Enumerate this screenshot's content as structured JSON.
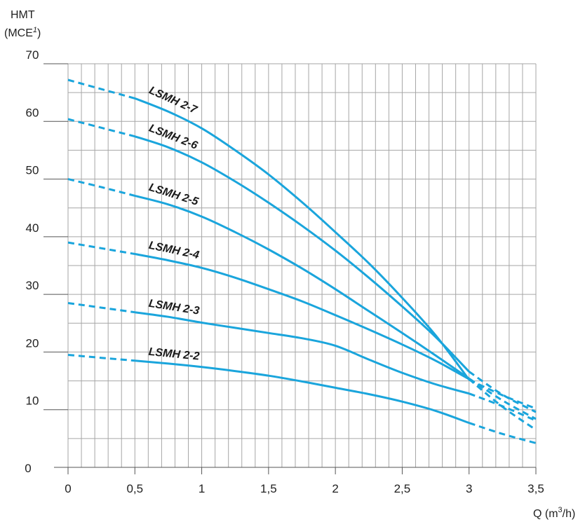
{
  "chart_data": {
    "type": "line",
    "ylabel_line1": "HMT",
    "ylabel_line2_main": "(MCE",
    "ylabel_line2_sup": "1",
    "ylabel_line2_end": ")",
    "xlabel_main": "Q (m",
    "xlabel_sup": "3",
    "xlabel_end": "/h)",
    "xlim": [
      0,
      3.5
    ],
    "ylim": [
      0,
      70
    ],
    "grid": true,
    "line_color": "#1aa5dc",
    "x_ticks": [
      {
        "value": 0,
        "label": "0"
      },
      {
        "value": 0.5,
        "label": "0,5"
      },
      {
        "value": 1,
        "label": "1"
      },
      {
        "value": 1.5,
        "label": "1,5"
      },
      {
        "value": 2,
        "label": "2"
      },
      {
        "value": 2.5,
        "label": "2,5"
      },
      {
        "value": 3,
        "label": "3"
      },
      {
        "value": 3.5,
        "label": "3,5"
      }
    ],
    "y_ticks": [
      {
        "value": 0,
        "label": "0"
      },
      {
        "value": 10,
        "label": "10"
      },
      {
        "value": 20,
        "label": "20"
      },
      {
        "value": 30,
        "label": "30"
      },
      {
        "value": 40,
        "label": "40"
      },
      {
        "value": 50,
        "label": "50"
      },
      {
        "value": 60,
        "label": "60"
      },
      {
        "value": 70,
        "label": "70"
      }
    ],
    "series": [
      {
        "name": "LSMH 2-7",
        "dashed_start": [
          [
            0,
            67.2
          ],
          [
            0.25,
            65.6
          ],
          [
            0.5,
            64.0
          ]
        ],
        "solid": [
          [
            0.5,
            64.0
          ],
          [
            0.75,
            61.7
          ],
          [
            1.0,
            58.8
          ],
          [
            1.25,
            55.0
          ],
          [
            1.5,
            50.8
          ],
          [
            1.75,
            46.0
          ],
          [
            2.0,
            40.8
          ],
          [
            2.25,
            35.4
          ],
          [
            2.5,
            29.4
          ],
          [
            2.75,
            22.9
          ],
          [
            3.0,
            15.2
          ]
        ],
        "dashed_end": [
          [
            3.0,
            15.2
          ],
          [
            3.25,
            12.5
          ],
          [
            3.5,
            10.2
          ]
        ]
      },
      {
        "name": "LSMH 2-6",
        "dashed_start": [
          [
            0,
            60.4
          ],
          [
            0.25,
            58.9
          ],
          [
            0.5,
            57.4
          ]
        ],
        "solid": [
          [
            0.5,
            57.4
          ],
          [
            0.75,
            55.5
          ],
          [
            1.0,
            52.9
          ],
          [
            1.25,
            49.6
          ],
          [
            1.5,
            45.9
          ],
          [
            1.75,
            41.9
          ],
          [
            2.0,
            37.6
          ],
          [
            2.25,
            32.9
          ],
          [
            2.5,
            27.9
          ],
          [
            2.75,
            22.6
          ],
          [
            3.0,
            16.6
          ]
        ],
        "dashed_end": [
          [
            3.0,
            16.6
          ],
          [
            3.25,
            12.6
          ],
          [
            3.5,
            9.6
          ]
        ]
      },
      {
        "name": "LSMH 2-5",
        "dashed_start": [
          [
            0,
            50.0
          ],
          [
            0.25,
            48.6
          ],
          [
            0.5,
            47.1
          ]
        ],
        "solid": [
          [
            0.5,
            47.1
          ],
          [
            0.75,
            45.6
          ],
          [
            1.0,
            43.5
          ],
          [
            1.25,
            40.8
          ],
          [
            1.5,
            37.8
          ],
          [
            1.75,
            34.5
          ],
          [
            2.0,
            30.9
          ],
          [
            2.25,
            27.1
          ],
          [
            2.5,
            23.3
          ],
          [
            2.75,
            19.4
          ],
          [
            3.0,
            15.4
          ]
        ],
        "dashed_end": [
          [
            3.0,
            15.4
          ],
          [
            3.25,
            11.6
          ],
          [
            3.5,
            8.4
          ]
        ]
      },
      {
        "name": "LSMH 2-4",
        "dashed_start": [
          [
            0,
            39.0
          ],
          [
            0.25,
            38.0
          ],
          [
            0.5,
            37.0
          ]
        ],
        "solid": [
          [
            0.5,
            37.0
          ],
          [
            0.75,
            35.9
          ],
          [
            1.0,
            34.6
          ],
          [
            1.25,
            32.9
          ],
          [
            1.5,
            30.9
          ],
          [
            1.75,
            28.8
          ],
          [
            2.0,
            26.4
          ],
          [
            2.25,
            23.9
          ],
          [
            2.5,
            21.3
          ],
          [
            2.75,
            18.5
          ],
          [
            3.0,
            15.3
          ]
        ],
        "dashed_end": [
          [
            3.0,
            15.3
          ],
          [
            3.25,
            10.5
          ],
          [
            3.5,
            6.5
          ]
        ]
      },
      {
        "name": "LSMH 2-3",
        "dashed_start": [
          [
            0,
            28.5
          ],
          [
            0.25,
            27.7
          ],
          [
            0.5,
            26.9
          ]
        ],
        "solid": [
          [
            0.5,
            26.9
          ],
          [
            0.75,
            26.1
          ],
          [
            1.0,
            25.1
          ],
          [
            1.25,
            24.2
          ],
          [
            1.5,
            23.3
          ],
          [
            1.75,
            22.4
          ],
          [
            2.0,
            21.1
          ],
          [
            2.25,
            18.7
          ],
          [
            2.5,
            16.4
          ],
          [
            2.75,
            14.4
          ],
          [
            3.0,
            12.8
          ]
        ],
        "dashed_end": [
          [
            3.0,
            12.8
          ],
          [
            3.25,
            10.6
          ],
          [
            3.5,
            8.1
          ]
        ]
      },
      {
        "name": "LSMH 2-2",
        "dashed_start": [
          [
            0,
            19.5
          ],
          [
            0.25,
            19.0
          ],
          [
            0.5,
            18.5
          ]
        ],
        "solid": [
          [
            0.5,
            18.5
          ],
          [
            0.75,
            18.0
          ],
          [
            1.0,
            17.4
          ],
          [
            1.25,
            16.7
          ],
          [
            1.5,
            15.9
          ],
          [
            1.75,
            14.9
          ],
          [
            2.0,
            13.8
          ],
          [
            2.25,
            12.7
          ],
          [
            2.5,
            11.4
          ],
          [
            2.75,
            9.8
          ],
          [
            3.0,
            7.7
          ]
        ],
        "dashed_end": [
          [
            3.0,
            7.7
          ],
          [
            3.25,
            5.8
          ],
          [
            3.5,
            4.2
          ]
        ]
      }
    ]
  }
}
